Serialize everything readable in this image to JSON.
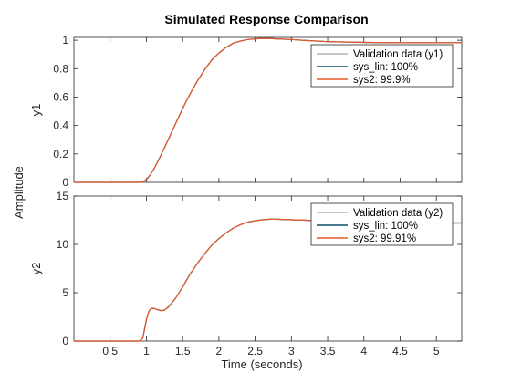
{
  "chart_data": {
    "type": "line",
    "title": "Simulated Response Comparison",
    "xlabel": "Time (seconds)",
    "ylabel": "Amplitude",
    "xlim": [
      0,
      5.35
    ],
    "xticks": [
      "0.5",
      "1",
      "1.5",
      "2",
      "2.5",
      "3",
      "3.5",
      "4",
      "4.5",
      "5"
    ],
    "xtick_values": [
      0.5,
      1,
      1.5,
      2,
      2.5,
      3,
      3.5,
      4,
      4.5,
      5
    ],
    "grid": false,
    "colors": {
      "validation": "#b3b3b3",
      "sys_lin": "#0b4f6c",
      "sys2": "#e8592a",
      "axis": "#262626"
    },
    "subplots": [
      {
        "ylabel": "y1",
        "ylim": [
          0,
          1.02
        ],
        "yticks": [
          "0",
          "0.2",
          "0.4",
          "0.6",
          "0.8",
          "1"
        ],
        "ytick_values": [
          0,
          0.2,
          0.4,
          0.6,
          0.8,
          1
        ],
        "legend": [
          "Validation data (y1)",
          "sys_lin:  100%",
          "sys2: 99.9%"
        ],
        "legend_position": "top-right",
        "series": [
          {
            "name": "sys2: 99.9%",
            "x": [
              0,
              0.9,
              0.95,
              1.0,
              1.05,
              1.1,
              1.2,
              1.3,
              1.4,
              1.5,
              1.6,
              1.7,
              1.8,
              1.9,
              2.0,
              2.1,
              2.2,
              2.3,
              2.4,
              2.5,
              2.6,
              2.7,
              2.8,
              3.0,
              3.2,
              3.5,
              4.0,
              4.5,
              5.0,
              5.35
            ],
            "y": [
              0,
              0,
              0.005,
              0.02,
              0.05,
              0.09,
              0.19,
              0.3,
              0.41,
              0.52,
              0.62,
              0.71,
              0.79,
              0.86,
              0.91,
              0.95,
              0.98,
              0.995,
              1.005,
              1.01,
              1.013,
              1.012,
              1.01,
              1.005,
              0.998,
              0.99,
              0.985,
              0.982,
              0.982,
              0.982
            ]
          }
        ]
      },
      {
        "ylabel": "y2",
        "ylim": [
          0,
          15
        ],
        "yticks": [
          "0",
          "5",
          "10",
          "15"
        ],
        "ytick_values": [
          0,
          5,
          10,
          15
        ],
        "legend": [
          "Validation data (y2)",
          "sys_lin:  100%",
          "sys2: 99.91%"
        ],
        "legend_position": "top-right",
        "series": [
          {
            "name": "sys2: 99.91%",
            "x": [
              0,
              0.9,
              0.95,
              1.0,
              1.03,
              1.06,
              1.1,
              1.15,
              1.2,
              1.25,
              1.3,
              1.4,
              1.5,
              1.6,
              1.7,
              1.8,
              1.9,
              2.0,
              2.1,
              2.2,
              2.3,
              2.4,
              2.5,
              2.6,
              2.7,
              2.8,
              3.0,
              3.2,
              3.5,
              4.0,
              4.5,
              5.0,
              5.35
            ],
            "y": [
              0,
              0,
              0.3,
              2.2,
              3.0,
              3.35,
              3.4,
              3.25,
              3.15,
              3.2,
              3.5,
              4.4,
              5.6,
              6.9,
              8.0,
              9.0,
              9.9,
              10.6,
              11.2,
              11.7,
              12.05,
              12.3,
              12.45,
              12.55,
              12.6,
              12.6,
              12.55,
              12.5,
              12.4,
              12.3,
              12.25,
              12.22,
              12.22
            ]
          }
        ]
      }
    ]
  }
}
